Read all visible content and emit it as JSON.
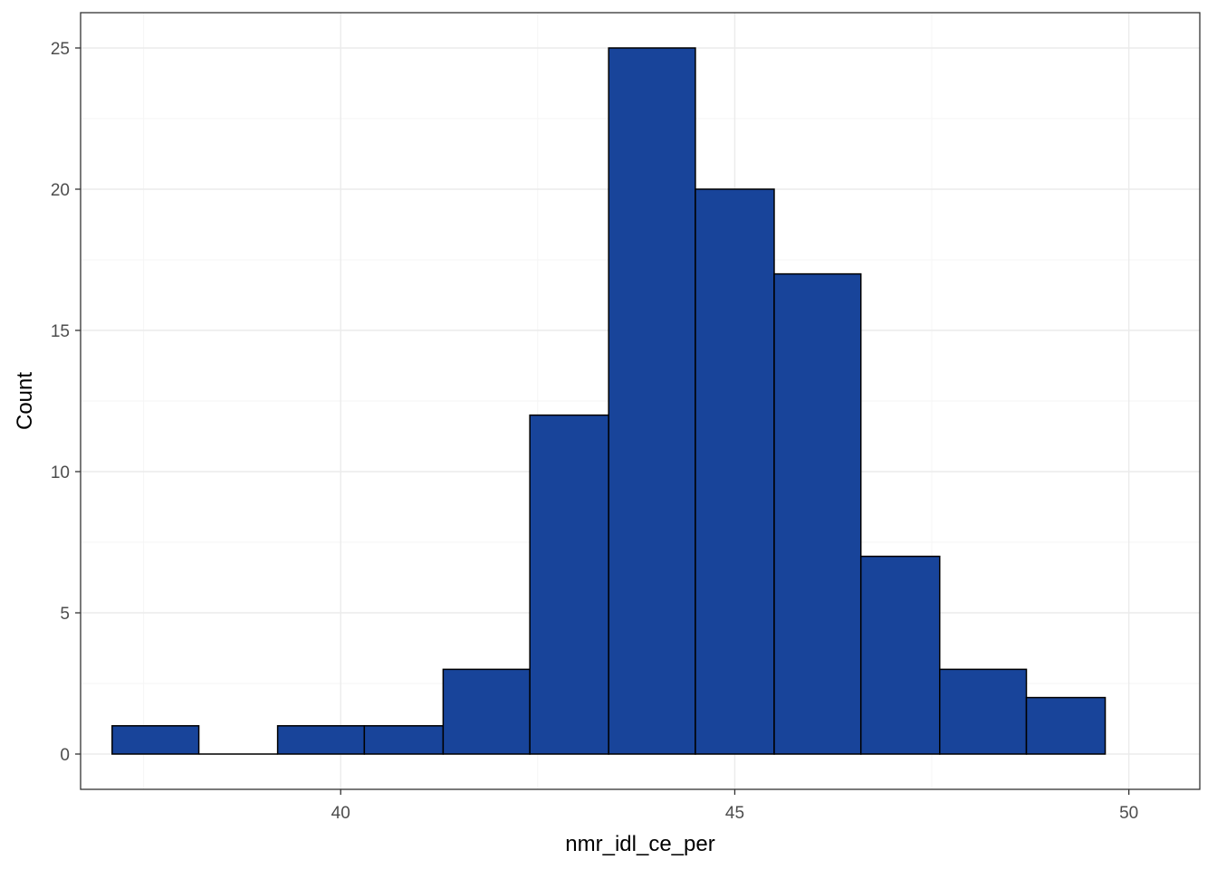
{
  "chart_data": {
    "type": "bar",
    "subtype": "histogram",
    "xlabel": "nmr_idl_ce_per",
    "ylabel": "Count",
    "xlim": [
      36.7,
      50.9
    ],
    "ylim": [
      -1.25,
      26.25
    ],
    "x_ticks": [
      40,
      45,
      50
    ],
    "y_ticks": [
      0,
      5,
      10,
      15,
      20,
      25
    ],
    "bins": [
      {
        "x0": 37.1,
        "x1": 38.2,
        "count": 1
      },
      {
        "x0": 38.2,
        "x1": 39.2,
        "count": 0
      },
      {
        "x0": 39.2,
        "x1": 40.3,
        "count": 1
      },
      {
        "x0": 40.3,
        "x1": 41.3,
        "count": 1
      },
      {
        "x0": 41.3,
        "x1": 42.4,
        "count": 3
      },
      {
        "x0": 42.4,
        "x1": 43.4,
        "count": 12
      },
      {
        "x0": 43.4,
        "x1": 44.5,
        "count": 25
      },
      {
        "x0": 44.5,
        "x1": 45.5,
        "count": 20
      },
      {
        "x0": 45.5,
        "x1": 46.6,
        "count": 17
      },
      {
        "x0": 46.6,
        "x1": 47.6,
        "count": 7
      },
      {
        "x0": 47.6,
        "x1": 48.7,
        "count": 3
      },
      {
        "x0": 48.7,
        "x1": 49.7,
        "count": 2
      }
    ],
    "fill_color": "#18449a",
    "edge_color": "#000000",
    "grid": true,
    "grid_major_color": "#ebebeb",
    "grid_minor_color": "#f5f5f5",
    "panel_border_color": "#333333",
    "theme": "bw"
  }
}
